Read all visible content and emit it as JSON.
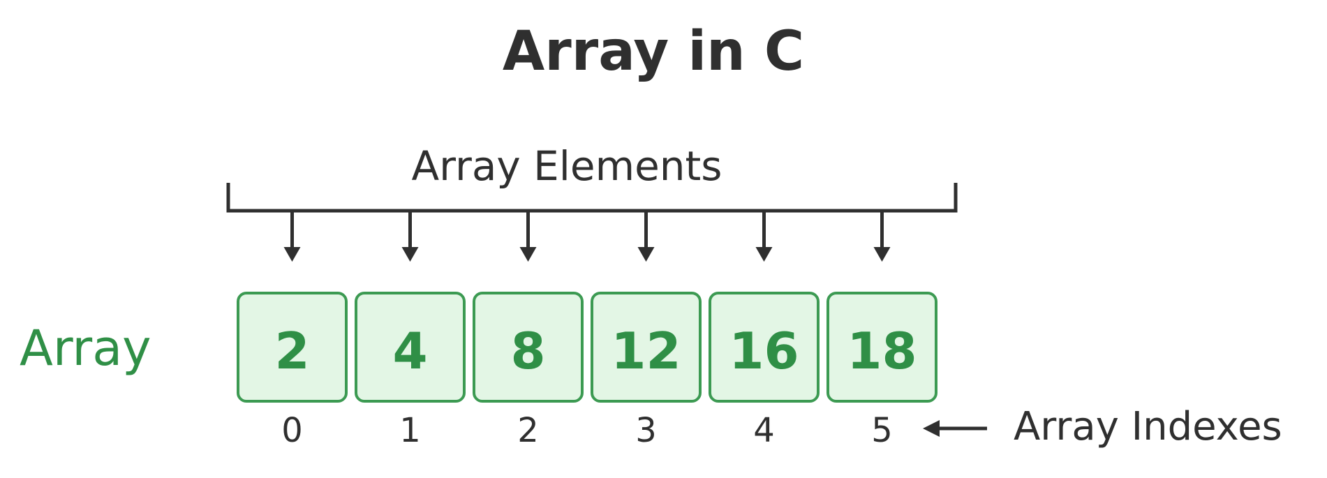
{
  "title": "Array in C",
  "top_label": "Array Elements",
  "left_label": "Array",
  "right_label": "Array Indexes",
  "elements": [
    "2",
    "4",
    "8",
    "12",
    "16",
    "18"
  ],
  "indexes": [
    "0",
    "1",
    "2",
    "3",
    "4",
    "5"
  ],
  "colors": {
    "text_dark": "#2f2f2f",
    "accent_green": "#2f8f46",
    "box_fill": "#e3f6e5",
    "box_border": "#3c9a52",
    "line": "#2f2f2f"
  }
}
